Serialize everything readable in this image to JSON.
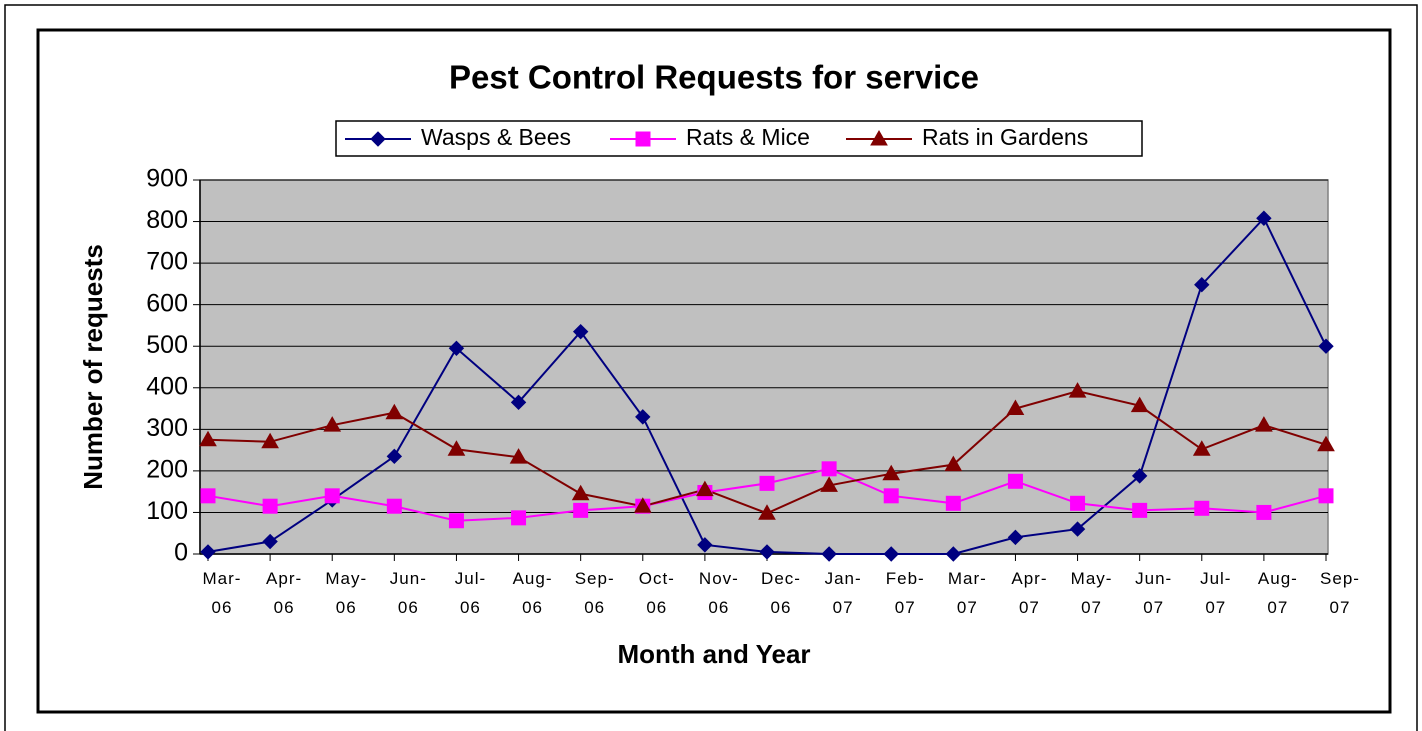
{
  "chart_data": {
    "type": "line",
    "title": "Pest Control Requests for service",
    "xlabel": "Month and Year",
    "ylabel": "Number of requests",
    "categories": [
      "Mar-06",
      "Apr-06",
      "May-06",
      "Jun-06",
      "Jul-06",
      "Aug-06",
      "Sep-06",
      "Oct-06",
      "Nov-06",
      "Dec-06",
      "Jan-07",
      "Feb-07",
      "Mar-07",
      "Apr-07",
      "May-07",
      "Jun-07",
      "Jul-07",
      "Aug-07",
      "Sep-07"
    ],
    "series": [
      {
        "name": "Wasps & Bees",
        "color": "#000080",
        "marker": "diamond",
        "values": [
          5,
          30,
          130,
          235,
          495,
          365,
          535,
          330,
          22,
          5,
          0,
          0,
          0,
          40,
          60,
          188,
          648,
          808,
          500
        ]
      },
      {
        "name": "Rats & Mice",
        "color": "#ff00ff",
        "marker": "square",
        "values": [
          140,
          115,
          140,
          115,
          80,
          87,
          105,
          115,
          148,
          170,
          205,
          140,
          122,
          175,
          122,
          105,
          110,
          100,
          140
        ]
      },
      {
        "name": "Rats in Gardens",
        "color": "#800000",
        "marker": "triangle",
        "values": [
          275,
          270,
          310,
          340,
          252,
          233,
          145,
          115,
          155,
          98,
          165,
          193,
          215,
          350,
          392,
          357,
          252,
          310,
          263
        ]
      }
    ],
    "ylim": [
      0,
      900
    ],
    "yticks": [
      0,
      100,
      200,
      300,
      400,
      500,
      600,
      700,
      800,
      900
    ],
    "grid": true,
    "legend": "top",
    "background": "#c0c0c0"
  }
}
